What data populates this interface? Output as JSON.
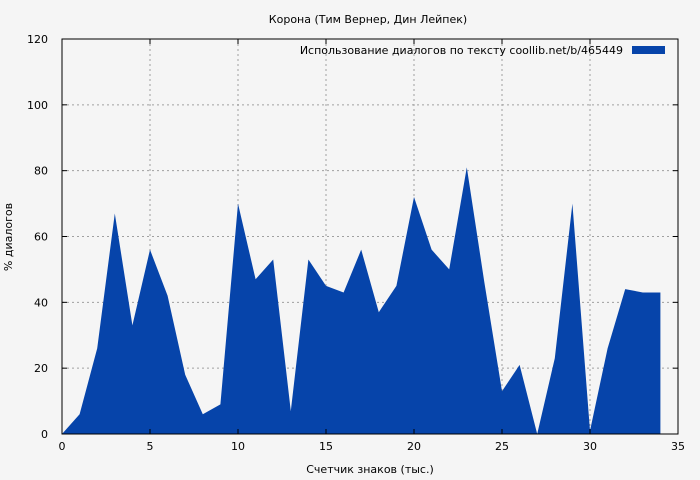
{
  "chart_data": {
    "type": "area",
    "title": "Корона (Тим Вернер, Дин Лейпек)",
    "xlabel": "Счетчик знаков (тыс.)",
    "ylabel": "% диалогов",
    "xlim": [
      0,
      35
    ],
    "ylim": [
      0,
      120
    ],
    "xticks": [
      0,
      5,
      10,
      15,
      20,
      25,
      30,
      35
    ],
    "yticks": [
      0,
      20,
      40,
      60,
      80,
      100,
      120
    ],
    "grid": true,
    "legend_position": "top-right",
    "color": "#0644aa",
    "series": [
      {
        "name": "Использование диалогов по тексту  coollib.net/b/465449",
        "x": [
          0,
          1,
          2,
          3,
          4,
          5,
          6,
          7,
          8,
          9,
          10,
          11,
          12,
          13,
          14,
          15,
          16,
          17,
          18,
          19,
          20,
          21,
          22,
          23,
          24,
          25,
          26,
          27,
          28,
          29,
          30,
          31,
          32,
          33,
          34
        ],
        "y": [
          0,
          6,
          26,
          67,
          33,
          56,
          42,
          18,
          6,
          9,
          70,
          47,
          53,
          7,
          53,
          45,
          43,
          56,
          37,
          45,
          72,
          56,
          50,
          81,
          46,
          13,
          21,
          0,
          23,
          70,
          1,
          26,
          44,
          43,
          43
        ]
      }
    ]
  }
}
